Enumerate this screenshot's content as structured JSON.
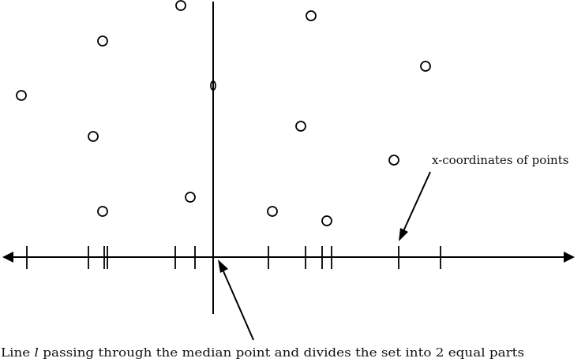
{
  "labels": {
    "x_coordinates": "x-coordinates of points",
    "caption_before": "Line ",
    "caption_var": "l",
    "caption_after": " passing through the median point and divides the set into 2 equal parts"
  },
  "colors": {
    "stroke": "#000000",
    "text": "#111111"
  }
}
